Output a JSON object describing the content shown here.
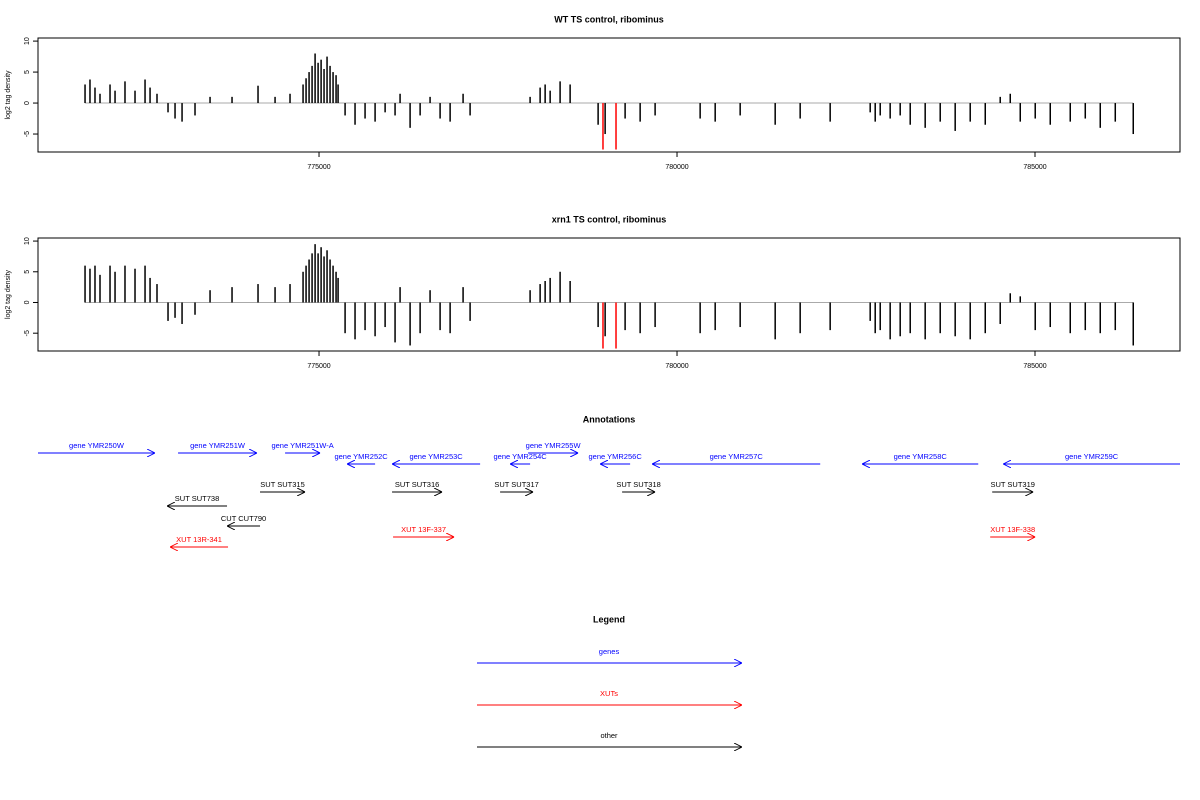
{
  "chart_data": [
    {
      "type": "spikes",
      "title": "WT TS control, ribominus",
      "ylabel": "log2 tag density",
      "xlim": [
        771075,
        787025
      ],
      "xticks": [
        775000,
        780000,
        785000
      ],
      "ylim": [
        -7.9,
        10.5
      ],
      "yticks": [
        -5,
        0,
        5,
        10
      ],
      "color": "#000000",
      "baseline_color": "#aaaaaa",
      "x": [
        771732,
        771801,
        771871,
        771941,
        772081,
        772151,
        772290,
        772430,
        772570,
        772640,
        772737,
        772891,
        772989,
        773087,
        773268,
        773478,
        773785,
        774148,
        774386,
        774595,
        774777,
        774819,
        774861,
        774903,
        774945,
        774987,
        775029,
        775070,
        775112,
        775154,
        775196,
        775238,
        775266,
        775364,
        775503,
        775643,
        775783,
        775923,
        776062,
        776132,
        776272,
        776412,
        776551,
        776691,
        776831,
        777012,
        777110,
        777948,
        778088,
        778158,
        778228,
        778367,
        778507,
        778898,
        778996,
        779275,
        779485,
        779694,
        780323,
        780533,
        780882,
        781371,
        781720,
        782139,
        782698,
        782768,
        782838,
        782977,
        783117,
        783257,
        783466,
        783676,
        783885,
        784095,
        784305,
        784514,
        784654,
        784794,
        785003,
        785213,
        785492,
        785702,
        785911,
        786121,
        786372
      ],
      "values": [
        3,
        3.8,
        2.5,
        1.5,
        3,
        2,
        3.5,
        2,
        3.8,
        2.5,
        1.5,
        -1.5,
        -2.5,
        -3,
        -2,
        1,
        1,
        2.8,
        1,
        1.5,
        3,
        4,
        5,
        6,
        8,
        6.5,
        7,
        5.5,
        7.5,
        6,
        5,
        4.5,
        3,
        -2,
        -3.5,
        -2.5,
        -3,
        -1.5,
        -2,
        1.5,
        -4,
        -2,
        1,
        -2.5,
        -3,
        1.5,
        -2,
        1,
        2.5,
        3,
        2,
        3.5,
        3,
        -3.5,
        -5,
        -2.5,
        -3,
        -2,
        -2.5,
        -3,
        -2,
        -3.5,
        -2.5,
        -3,
        -1.5,
        -3,
        -2,
        -2.5,
        -2,
        -3.5,
        -4,
        -3,
        -4.5,
        -3,
        -3.5,
        1,
        1.5,
        -3,
        -2.5,
        -3.5,
        -3,
        -2.5,
        -4,
        -3,
        -5
      ],
      "highlight": {
        "color": "#ff0000",
        "x": [
          778966,
          779148
        ],
        "values": [
          -7.5,
          -7.5
        ]
      }
    },
    {
      "type": "spikes",
      "title": "xrn1 TS control, ribominus",
      "ylabel": "log2 tag density",
      "xlim": [
        771075,
        787025
      ],
      "xticks": [
        775000,
        780000,
        785000
      ],
      "ylim": [
        -7.9,
        10.5
      ],
      "yticks": [
        -5,
        0,
        5,
        10
      ],
      "color": "#000000",
      "baseline_color": "#aaaaaa",
      "x": [
        771732,
        771801,
        771871,
        771941,
        772081,
        772151,
        772290,
        772430,
        772570,
        772640,
        772737,
        772891,
        772989,
        773087,
        773268,
        773478,
        773785,
        774148,
        774386,
        774595,
        774777,
        774819,
        774861,
        774903,
        774945,
        774987,
        775029,
        775070,
        775112,
        775154,
        775196,
        775238,
        775266,
        775364,
        775503,
        775643,
        775783,
        775923,
        776062,
        776132,
        776272,
        776412,
        776551,
        776691,
        776831,
        777012,
        777110,
        777948,
        778088,
        778158,
        778228,
        778367,
        778507,
        778898,
        778996,
        779275,
        779485,
        779694,
        780323,
        780533,
        780882,
        781371,
        781720,
        782139,
        782698,
        782768,
        782838,
        782977,
        783117,
        783257,
        783466,
        783676,
        783885,
        784095,
        784305,
        784514,
        784654,
        784794,
        785003,
        785213,
        785492,
        785702,
        785911,
        786121,
        786372
      ],
      "values": [
        6,
        5.5,
        6,
        4.5,
        6,
        5,
        6,
        5.5,
        6,
        4,
        3,
        -3,
        -2.5,
        -3.5,
        -2,
        2,
        2.5,
        3,
        2.5,
        3,
        5,
        6,
        7,
        8,
        9.5,
        8,
        9,
        7.5,
        8.5,
        7,
        6,
        5,
        4,
        -5,
        -6,
        -4.5,
        -5.5,
        -4,
        -6.5,
        2.5,
        -7,
        -5,
        2,
        -4.5,
        -5,
        2.5,
        -3,
        2,
        3,
        3.5,
        4,
        5,
        3.5,
        -4,
        -5.5,
        -4.5,
        -5,
        -4,
        -5,
        -4.5,
        -4,
        -6,
        -5,
        -4.5,
        -3,
        -5,
        -4.5,
        -6,
        -5.5,
        -5,
        -6,
        -5,
        -5.5,
        -6,
        -5,
        -3.5,
        1.5,
        1,
        -4.5,
        -4,
        -5,
        -4.5,
        -5,
        -4.5,
        -7
      ],
      "highlight": {
        "color": "#ff0000",
        "x": [
          778966,
          779148
        ],
        "values": [
          -7.5,
          -7.5
        ]
      }
    }
  ],
  "annotations": {
    "title": "Annotations",
    "xlim": [
      771075,
      787025
    ],
    "features": [
      {
        "label": "gene YMR250W",
        "start": 771075,
        "end": 772709,
        "strand": "+",
        "color": "#0000ff"
      },
      {
        "label": "gene YMR251W",
        "start": 773031,
        "end": 774134,
        "strand": "+",
        "color": "#0000ff"
      },
      {
        "label": "gene YMR251W-A",
        "start": 774526,
        "end": 775015,
        "strand": "+",
        "color": "#0000ff"
      },
      {
        "label": "gene YMR252C",
        "start": 775392,
        "end": 775783,
        "strand": "-",
        "color": "#0000ff"
      },
      {
        "label": "gene YMR253C",
        "start": 776020,
        "end": 777250,
        "strand": "-",
        "color": "#0000ff"
      },
      {
        "label": "gene YMR254C",
        "start": 777669,
        "end": 777948,
        "strand": "-",
        "color": "#0000ff"
      },
      {
        "label": "gene YMR255W",
        "start": 777920,
        "end": 778619,
        "strand": "+",
        "color": "#0000ff"
      },
      {
        "label": "gene YMR256C",
        "start": 778926,
        "end": 779345,
        "strand": "-",
        "color": "#0000ff"
      },
      {
        "label": "gene YMR257C",
        "start": 779653,
        "end": 782000,
        "strand": "-",
        "color": "#0000ff"
      },
      {
        "label": "gene YMR258C",
        "start": 782586,
        "end": 784207,
        "strand": "-",
        "color": "#0000ff"
      },
      {
        "label": "gene YMR259C",
        "start": 784556,
        "end": 787025,
        "strand": "-",
        "color": "#0000ff"
      },
      {
        "label": "SUT SUT738",
        "start": 772877,
        "end": 773715,
        "strand": "-",
        "color": "#000000"
      },
      {
        "label": "SUT SUT315",
        "start": 774176,
        "end": 774805,
        "strand": "+",
        "color": "#000000"
      },
      {
        "label": "SUT SUT316",
        "start": 776020,
        "end": 776719,
        "strand": "+",
        "color": "#000000"
      },
      {
        "label": "SUT SUT317",
        "start": 777529,
        "end": 777990,
        "strand": "+",
        "color": "#000000"
      },
      {
        "label": "SUT SUT318",
        "start": 779233,
        "end": 779694,
        "strand": "+",
        "color": "#000000"
      },
      {
        "label": "SUT SUT319",
        "start": 784402,
        "end": 784975,
        "strand": "+",
        "color": "#000000"
      },
      {
        "label": "CUT CUT790",
        "start": 773715,
        "end": 774176,
        "strand": "-",
        "color": "#000000"
      },
      {
        "label": "XUT 13R-341",
        "start": 772919,
        "end": 773729,
        "strand": "-",
        "color": "#ff0000"
      },
      {
        "label": "XUT 13F-337",
        "start": 776034,
        "end": 776887,
        "strand": "+",
        "color": "#ff0000"
      },
      {
        "label": "XUT 13F-338",
        "start": 784374,
        "end": 785003,
        "strand": "+",
        "color": "#ff0000"
      }
    ]
  },
  "legend": {
    "title": "Legend",
    "entries": [
      {
        "label": "genes",
        "color": "#0000ff"
      },
      {
        "label": "XUTs",
        "color": "#ff0000"
      },
      {
        "label": "other",
        "color": "#000000"
      }
    ]
  }
}
